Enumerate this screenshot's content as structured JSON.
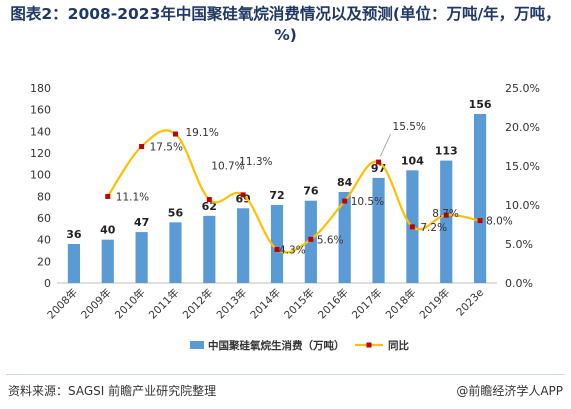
{
  "title": "图表2：2008-2023年中国聚硅氧烷消费情况以及预测(单位：万吨/年，万吨，%)",
  "source": "资料来源：SAGSI 前瞻产业研究院整理",
  "brand": "@前瞻经济学人APP",
  "colors": {
    "bar": "#5b9bd5",
    "line": "#ffc000",
    "marker": "#c00000",
    "title": "#1f3864"
  },
  "chart_data": {
    "type": "bar",
    "categories": [
      "2008年",
      "2009年",
      "2010年",
      "2011年",
      "2012年",
      "2013年",
      "2014年",
      "2015年",
      "2016年",
      "2017年",
      "2018年",
      "2019年",
      "2023e"
    ],
    "series": [
      {
        "name": "中国聚硅氧烷生消费（万吨）",
        "type": "bar",
        "axis": "left",
        "values": [
          36,
          40,
          47,
          56,
          62,
          69,
          72,
          76,
          84,
          97,
          104,
          113,
          156
        ]
      },
      {
        "name": "同比",
        "type": "line",
        "axis": "right",
        "values": [
          null,
          11.1,
          17.5,
          19.1,
          10.7,
          11.3,
          4.3,
          5.6,
          10.5,
          15.5,
          7.2,
          8.7,
          8.0
        ],
        "labels": [
          "",
          "11.1%",
          "17.5%",
          "19.1%",
          "10.7%",
          "11.3%",
          "4.3%",
          "5.6%",
          "10.5%",
          "15.5%",
          "7.2%",
          "8.7%",
          "8.0%"
        ]
      }
    ],
    "y_left": {
      "ylim": [
        0,
        180
      ],
      "ticks": [
        0,
        20,
        40,
        60,
        80,
        100,
        120,
        140,
        160,
        180
      ]
    },
    "y_right": {
      "ylim": [
        0,
        25
      ],
      "ticks": [
        "0.0%",
        "5.0%",
        "10.0%",
        "15.0%",
        "20.0%",
        "25.0%"
      ]
    },
    "legend_position": "bottom-center",
    "grid": false
  }
}
